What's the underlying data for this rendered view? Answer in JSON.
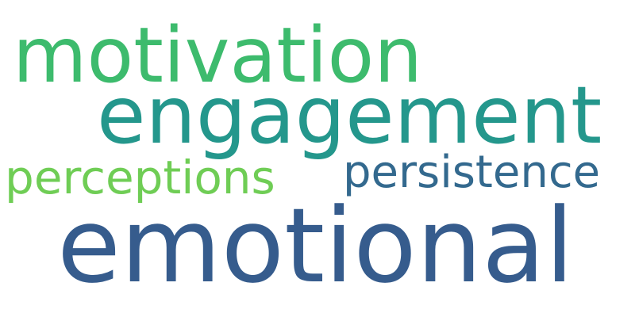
{
  "word_cloud": {
    "background": "#ffffff",
    "words": [
      {
        "text": "motivation",
        "color": "#3dbb6d"
      },
      {
        "text": "engagement",
        "color": "#24978c"
      },
      {
        "text": "perceptions",
        "color": "#6fcd55"
      },
      {
        "text": "persistence",
        "color": "#33698e"
      },
      {
        "text": "emotional",
        "color": "#365c8d"
      }
    ]
  }
}
